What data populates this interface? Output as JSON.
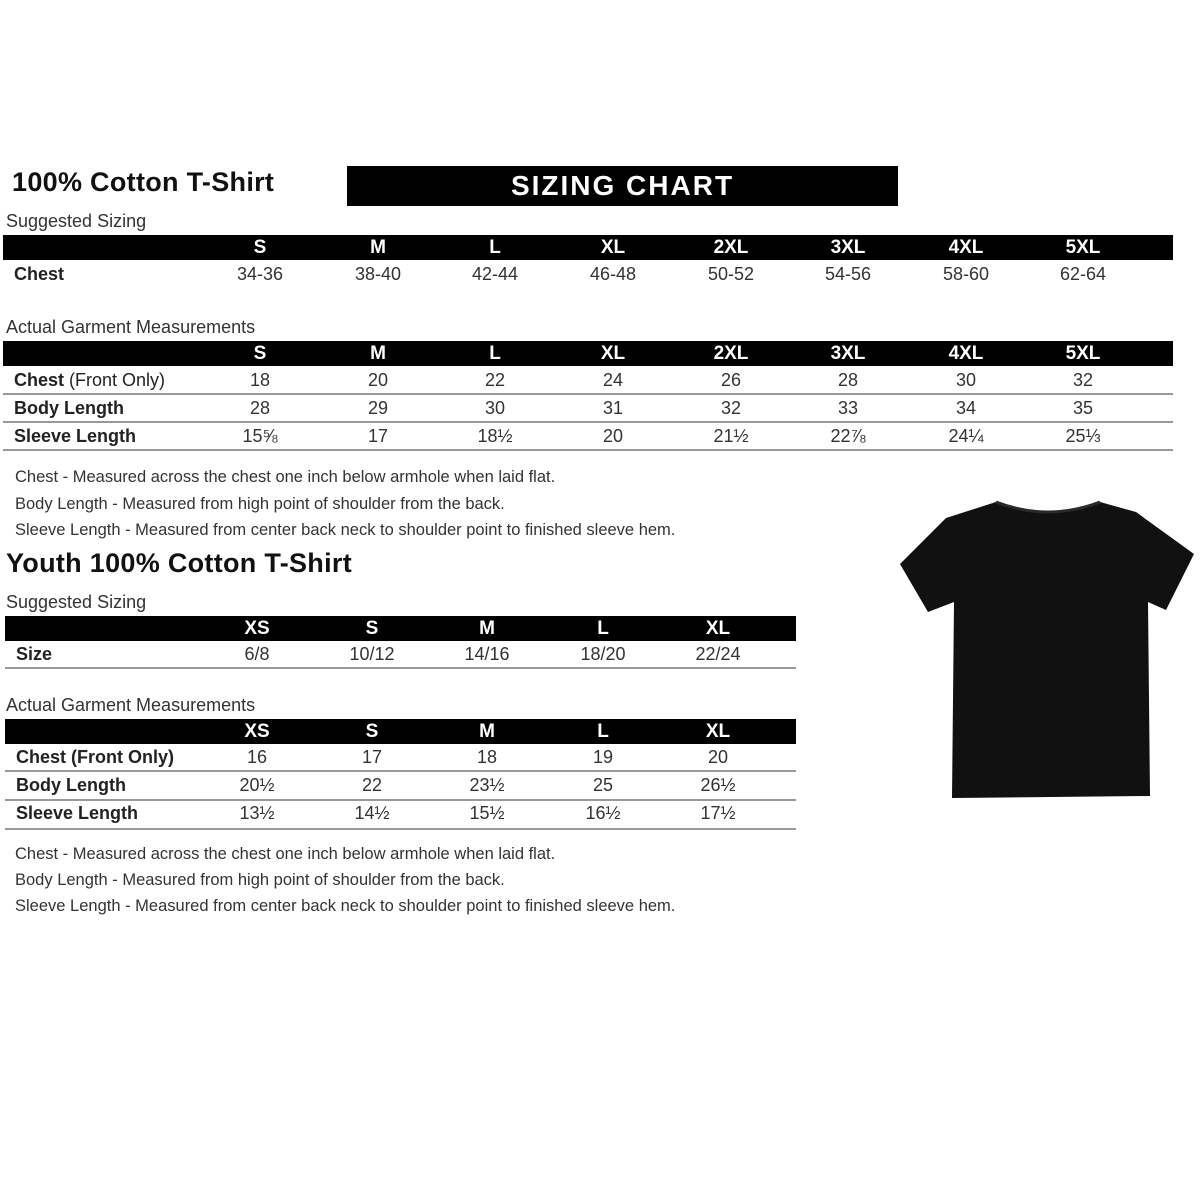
{
  "adult": {
    "title": "100% Cotton T-Shirt",
    "banner": "SIZING CHART",
    "suggested": {
      "heading": "Suggested Sizing",
      "sizes": [
        "S",
        "M",
        "L",
        "XL",
        "2XL",
        "3XL",
        "4XL",
        "5XL"
      ],
      "rows": [
        {
          "label": "Chest",
          "label_extra": "",
          "values": [
            "34-36",
            "38-40",
            "42-44",
            "46-48",
            "50-52",
            "54-56",
            "58-60",
            "62-64"
          ]
        }
      ]
    },
    "actual": {
      "heading": "Actual Garment Measurements",
      "sizes": [
        "S",
        "M",
        "L",
        "XL",
        "2XL",
        "3XL",
        "4XL",
        "5XL"
      ],
      "rows": [
        {
          "label": "Chest",
          "label_extra": " (Front Only)",
          "values": [
            "18",
            "20",
            "22",
            "24",
            "26",
            "28",
            "30",
            "32"
          ]
        },
        {
          "label": "Body Length",
          "label_extra": "",
          "values": [
            "28",
            "29",
            "30",
            "31",
            "32",
            "33",
            "34",
            "35"
          ]
        },
        {
          "label": "Sleeve Length",
          "label_extra": "",
          "values": [
            "15⅝",
            "17",
            "18½",
            "20",
            "21½",
            "22⅞",
            "24¼",
            "25⅓"
          ]
        }
      ]
    },
    "notes": [
      "Chest - Measured across the chest one inch below armhole when laid flat.",
      "Body Length - Measured from high point of shoulder from the back.",
      "Sleeve Length - Measured from center back neck to shoulder point to finished sleeve hem."
    ]
  },
  "youth": {
    "title": "Youth 100% Cotton T-Shirt",
    "suggested": {
      "heading": "Suggested Sizing",
      "sizes": [
        "XS",
        "S",
        "M",
        "L",
        "XL"
      ],
      "rows": [
        {
          "label": "Size",
          "label_extra": "",
          "values": [
            "6/8",
            "10/12",
            "14/16",
            "18/20",
            "22/24"
          ]
        }
      ]
    },
    "actual": {
      "heading": "Actual Garment Measurements",
      "sizes": [
        "XS",
        "S",
        "M",
        "L",
        "XL"
      ],
      "rows": [
        {
          "label": "Chest (Front Only)",
          "label_extra": "",
          "values": [
            "16",
            "17",
            "18",
            "19",
            "20"
          ]
        },
        {
          "label": "Body Length",
          "label_extra": "",
          "values": [
            "20½",
            "22",
            "23½",
            "25",
            "26½"
          ]
        },
        {
          "label": "Sleeve Length",
          "label_extra": "",
          "values": [
            "13½",
            "14½",
            "15½",
            "16½",
            "17½"
          ]
        }
      ]
    },
    "notes": [
      "Chest - Measured across the chest one inch below armhole when laid flat.",
      "Body Length - Measured from high point of shoulder from the back.",
      "Sleeve Length - Measured from center back neck to shoulder point to finished sleeve hem."
    ]
  },
  "image": {
    "subject": "black-t-shirt",
    "color": "#111111"
  }
}
